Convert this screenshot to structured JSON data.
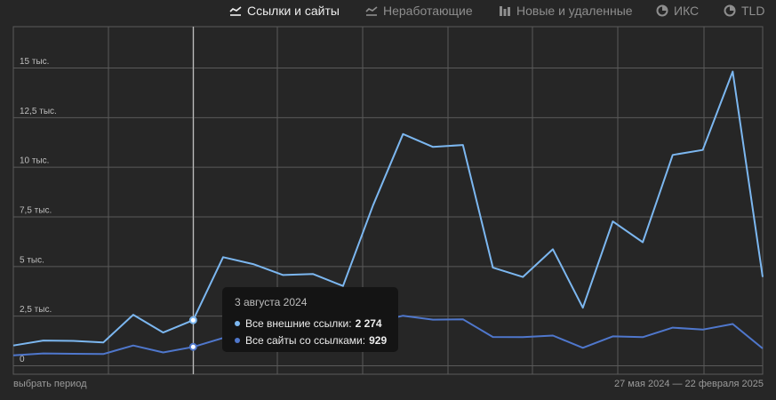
{
  "tabs": [
    {
      "label": "Ссылки и сайты",
      "icon": "line-chart-icon",
      "active": true
    },
    {
      "label": "Неработающие",
      "icon": "line-chart-icon",
      "active": false
    },
    {
      "label": "Новые и удаленные",
      "icon": "bar-chart-icon",
      "active": false
    },
    {
      "label": "ИКС",
      "icon": "iks-icon",
      "active": false
    },
    {
      "label": "TLD",
      "icon": "tld-icon",
      "active": false
    }
  ],
  "footer": {
    "period_link": "выбрать период",
    "date_range": "27 мая 2024 — 22 февраля 2025"
  },
  "tooltip": {
    "date": "3 августа 2024",
    "rows": [
      {
        "label": "Все внешние ссылки:",
        "value": "2 274",
        "color": "#7cb7f0"
      },
      {
        "label": "Все сайты со ссылками:",
        "value": "929",
        "color": "#4f77cc"
      }
    ]
  },
  "chart_data": {
    "type": "line",
    "x": [
      "27 мая 2024",
      "",
      "",
      "",
      "",
      "",
      "3 августа 2024",
      "",
      "",
      "",
      "",
      "",
      "",
      "",
      "",
      "",
      "",
      "",
      "",
      "",
      "",
      "",
      "",
      "",
      "",
      "22 февраля 2025"
    ],
    "y_ticks": [
      "0",
      "2,5 тыс.",
      "5 тыс.",
      "7,5 тыс.",
      "10 тыс.",
      "12,5 тыс.",
      "15 тыс."
    ],
    "y_tick_values": [
      0,
      2500,
      5000,
      7500,
      10000,
      12500,
      15000
    ],
    "ylim": [
      0,
      17500
    ],
    "grid": true,
    "highlight_index": 6,
    "series": [
      {
        "name": "Все внешние ссылки",
        "color": "#7cb7f0",
        "values": [
          1000,
          1250,
          1230,
          1150,
          2550,
          1650,
          2274,
          5450,
          5100,
          4550,
          4600,
          4000,
          8050,
          11650,
          11000,
          11100,
          4920,
          4450,
          5850,
          2900,
          7250,
          6200,
          10600,
          10850,
          14800,
          4450
        ]
      },
      {
        "name": "Все сайты со ссылками",
        "color": "#4f77cc",
        "values": [
          500,
          600,
          580,
          570,
          1000,
          650,
          929,
          1380,
          1450,
          1500,
          1550,
          1600,
          2150,
          2500,
          2300,
          2320,
          1430,
          1420,
          1500,
          880,
          1460,
          1420,
          1900,
          1800,
          2080,
          850
        ]
      }
    ]
  }
}
